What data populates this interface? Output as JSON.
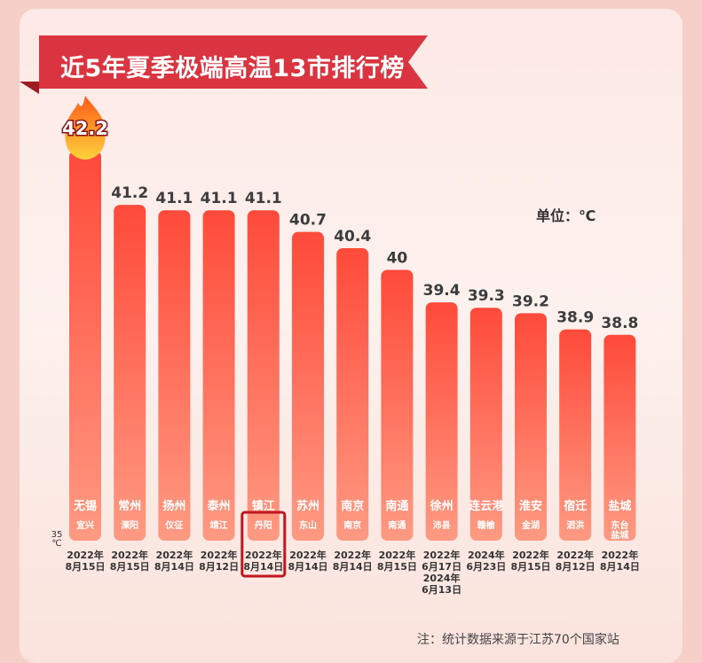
{
  "title": "近5年夏季极端高温13市排行榜",
  "unit_label": "单位：℃",
  "footnote": "注：统计数据来源于江苏70个国家站",
  "colors": {
    "banner": "#d9343f",
    "bar_top": "#ff4a3a",
    "bar_bottom": "#ff9a82",
    "value_text": "#3c3c3c",
    "highlight_box": "#c0161e"
  },
  "highlight_icon": "flame-icon",
  "chart_data": {
    "type": "bar",
    "ylim": [
      35,
      42.2
    ],
    "axis_min_label": "35\n℃",
    "categories": [
      "无锡",
      "常州",
      "扬州",
      "泰州",
      "镇江",
      "苏州",
      "南京",
      "南通",
      "徐州",
      "连云港",
      "淮安",
      "宿迁",
      "盐城"
    ],
    "stations": [
      "宜兴",
      "溧阳",
      "仪征",
      "靖江",
      "丹阳",
      "东山",
      "南京",
      "南通",
      "沛县",
      "赣榆",
      "金湖",
      "泗洪",
      "东台\n盐城"
    ],
    "dates": [
      "2022年\n8月15日",
      "2022年\n8月15日",
      "2022年\n8月14日",
      "2022年\n8月12日",
      "2022年\n8月14日",
      "2022年\n8月14日",
      "2022年\n8月14日",
      "2022年\n8月15日",
      "2022年\n6月17日\n2024年\n6月13日",
      "2024年\n6月23日",
      "2022年\n8月15日",
      "2022年\n8月12日",
      "2022年\n8月14日"
    ],
    "values": [
      42.2,
      41.2,
      41.1,
      41.1,
      41.1,
      40.7,
      40.4,
      40,
      39.4,
      39.3,
      39.2,
      38.9,
      38.8
    ],
    "value_labels": [
      "42.2",
      "41.2",
      "41.1",
      "41.1",
      "41.1",
      "40.7",
      "40.4",
      "40",
      "39.4",
      "39.3",
      "39.2",
      "38.9",
      "38.8"
    ],
    "highlighted_index": 4
  }
}
